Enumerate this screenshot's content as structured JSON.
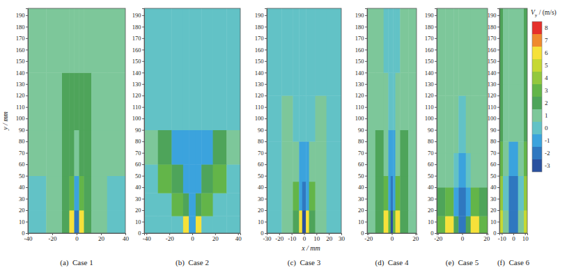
{
  "chart_data": [
    {
      "type": "heatmap",
      "caption": "(a)  Case 1",
      "ylabel": "y / mm",
      "xlim": [
        -40,
        40
      ],
      "ylim": [
        0,
        196
      ],
      "xticks": [
        -40,
        -20,
        0,
        20,
        40
      ],
      "yticks": [
        0,
        10,
        20,
        30,
        40,
        50,
        60,
        70,
        80,
        90,
        100,
        110,
        120,
        130,
        140,
        150,
        160,
        170,
        180,
        190
      ],
      "x_edges": [
        -40,
        -25,
        -12,
        -6,
        -2,
        2,
        6,
        12,
        25,
        40
      ],
      "y_edges": [
        0,
        20,
        50,
        90,
        140,
        196
      ],
      "values": [
        [
          0,
          1,
          2,
          6,
          -2,
          6,
          2,
          1,
          0
        ],
        [
          0,
          1,
          2,
          3,
          -1,
          3,
          2,
          1,
          0
        ],
        [
          1,
          1,
          2,
          2,
          1,
          2,
          2,
          1,
          1
        ],
        [
          1,
          1,
          2,
          2,
          2,
          2,
          2,
          1,
          1
        ],
        [
          1,
          1,
          1,
          1,
          1,
          1,
          1,
          1,
          1
        ]
      ]
    },
    {
      "type": "heatmap",
      "caption": "(b)  Case 2",
      "xlim": [
        -42,
        42
      ],
      "ylim": [
        0,
        196
      ],
      "xticks": [
        -40,
        -20,
        0,
        20,
        40
      ],
      "yticks": [
        0,
        10,
        20,
        30,
        40,
        50,
        60,
        70,
        80,
        90,
        100,
        110,
        120,
        130,
        140,
        150,
        160,
        170,
        180,
        190
      ],
      "x_edges": [
        -42,
        -30,
        -18,
        -8,
        -3,
        3,
        8,
        18,
        30,
        42
      ],
      "y_edges": [
        0,
        15,
        35,
        60,
        90,
        196
      ],
      "values": [
        [
          0,
          0,
          0,
          6,
          -1,
          6,
          0,
          0,
          0
        ],
        [
          0,
          0,
          3,
          2,
          -1,
          2,
          3,
          0,
          0
        ],
        [
          0,
          3,
          2,
          -1,
          -1,
          -1,
          2,
          3,
          0
        ],
        [
          1,
          2,
          -1,
          -1,
          -1,
          -1,
          -1,
          2,
          1
        ],
        [
          0,
          0,
          0,
          0,
          0,
          0,
          0,
          0,
          0
        ]
      ]
    },
    {
      "type": "heatmap",
      "caption": "(c)  Case 3",
      "xlabel": "x / mm",
      "xlim": [
        -30,
        30
      ],
      "ylim": [
        0,
        196
      ],
      "xticks": [
        -30,
        -20,
        -10,
        0,
        10,
        20,
        30
      ],
      "yticks": [
        0,
        10,
        20,
        30,
        40,
        50,
        60,
        70,
        80,
        90,
        100,
        110,
        120,
        130,
        140,
        150,
        160,
        170,
        180,
        190
      ],
      "x_edges": [
        -30,
        -18,
        -9,
        -4,
        -1.5,
        1.5,
        4,
        9,
        18,
        30
      ],
      "y_edges": [
        0,
        20,
        45,
        80,
        120,
        196
      ],
      "values": [
        [
          0,
          1,
          2,
          6,
          -3,
          6,
          2,
          1,
          0
        ],
        [
          0,
          1,
          3,
          -1,
          -2,
          -1,
          3,
          1,
          0
        ],
        [
          0,
          1,
          1,
          -1,
          -1,
          -1,
          1,
          1,
          0
        ],
        [
          0,
          1,
          0,
          0,
          0,
          0,
          0,
          1,
          0
        ],
        [
          0,
          0,
          0,
          0,
          0,
          0,
          0,
          0,
          0
        ]
      ]
    },
    {
      "type": "heatmap",
      "caption": "(d)  Case 4",
      "xlim": [
        -21,
        21
      ],
      "ylim": [
        0,
        196
      ],
      "xticks": [
        -20,
        0,
        20
      ],
      "yticks": [
        0,
        10,
        20,
        30,
        40,
        50,
        60,
        70,
        80,
        90,
        100,
        110,
        120,
        130,
        140,
        150,
        160,
        170,
        180,
        190
      ],
      "x_edges": [
        -21,
        -14,
        -7,
        -3,
        -1,
        1,
        3,
        7,
        14,
        21
      ],
      "y_edges": [
        0,
        20,
        50,
        90,
        140,
        196
      ],
      "values": [
        [
          1,
          2,
          6,
          3,
          -3,
          3,
          6,
          2,
          1
        ],
        [
          1,
          2,
          3,
          -1,
          -2,
          -1,
          3,
          2,
          1
        ],
        [
          1,
          2,
          1,
          -1,
          -1,
          -1,
          1,
          2,
          1
        ],
        [
          1,
          1,
          1,
          0,
          0,
          0,
          1,
          1,
          1
        ],
        [
          1,
          1,
          0,
          0,
          0,
          0,
          0,
          1,
          1
        ]
      ]
    },
    {
      "type": "heatmap",
      "caption": "(e)  Case 5",
      "xlim": [
        -21,
        21
      ],
      "ylim": [
        0,
        196
      ],
      "xticks": [
        -20,
        0,
        20
      ],
      "yticks": [
        0,
        10,
        20,
        30,
        40,
        50,
        60,
        70,
        80,
        90,
        100,
        110,
        120,
        130,
        140,
        150,
        160,
        170,
        180,
        190
      ],
      "x_edges": [
        -21,
        -14,
        -7,
        -3,
        3,
        7,
        14,
        21
      ],
      "y_edges": [
        0,
        15,
        40,
        70,
        120,
        196
      ],
      "values": [
        [
          3,
          6,
          2,
          -2,
          2,
          6,
          3
        ],
        [
          2,
          3,
          -1,
          -2,
          -1,
          3,
          2
        ],
        [
          1,
          1,
          0,
          -1,
          0,
          1,
          1
        ],
        [
          1,
          1,
          1,
          0,
          1,
          1,
          1
        ],
        [
          1,
          1,
          1,
          1,
          1,
          1,
          1
        ]
      ]
    },
    {
      "type": "heatmap",
      "caption": "(f)  Case 6",
      "xlim": [
        -12,
        12
      ],
      "ylim": [
        0,
        196
      ],
      "xticks": [
        -10,
        0,
        10
      ],
      "yticks": [
        0,
        10,
        20,
        30,
        40,
        50,
        60,
        70,
        80,
        90,
        100,
        110,
        120,
        130,
        140,
        150,
        160,
        170,
        180,
        190
      ],
      "x_edges": [
        -12,
        -9,
        -4,
        4,
        9,
        12
      ],
      "y_edges": [
        0,
        20,
        50,
        80,
        130,
        196
      ],
      "values": [
        [
          5,
          1,
          -2,
          1,
          5
        ],
        [
          4,
          0,
          -2,
          0,
          4
        ],
        [
          3,
          1,
          -1,
          1,
          3
        ],
        [
          2,
          1,
          1,
          1,
          2
        ],
        [
          2,
          1,
          1,
          1,
          2
        ]
      ],
      "colorbar": {
        "label": {
          "symbol": "V",
          "subscript": "y",
          "unit": " / (m/s)"
        },
        "range": [
          -3.5,
          8.5
        ],
        "ticks": [
          8,
          7,
          6,
          5,
          4,
          3,
          2,
          1,
          0,
          -1,
          -2,
          -3
        ],
        "colors": [
          "#e5302a",
          "#ef8a2d",
          "#f6e13a",
          "#c6d833",
          "#93c83e",
          "#63b549",
          "#4ea45a",
          "#7dc79a",
          "#62c2c6",
          "#3ba3dd",
          "#2f78c0",
          "#2a519f"
        ]
      }
    }
  ]
}
